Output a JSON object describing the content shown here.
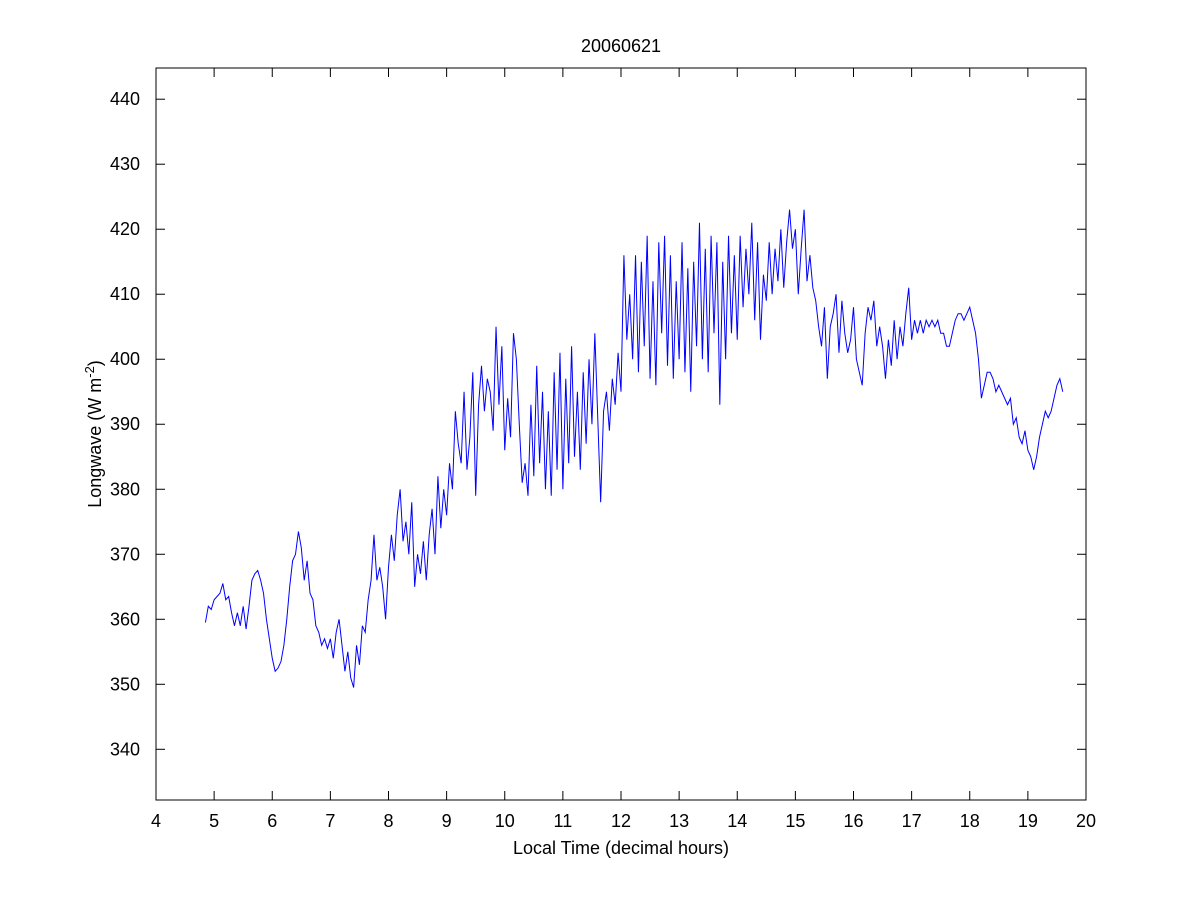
{
  "chart_data": {
    "type": "line",
    "title": "20060621",
    "x_label": "Local Time (decimal hours)",
    "y_label": {
      "text": "Longwave (W m",
      "superscript": "-2",
      "suffix": ")"
    },
    "color": "#0000ff",
    "xlim": [
      4,
      20
    ],
    "xticks": [
      4,
      5,
      6,
      7,
      8,
      9,
      10,
      11,
      12,
      13,
      14,
      15,
      16,
      17,
      18,
      19,
      20
    ],
    "ylim": [
      332.2,
      444.8
    ],
    "yticks": [
      340,
      350,
      360,
      370,
      380,
      390,
      400,
      410,
      420,
      430,
      440
    ],
    "x": [
      4.85,
      4.9,
      4.95,
      5.0,
      5.05,
      5.1,
      5.15,
      5.2,
      5.25,
      5.3,
      5.35,
      5.4,
      5.45,
      5.5,
      5.55,
      5.6,
      5.65,
      5.7,
      5.75,
      5.8,
      5.85,
      5.9,
      5.95,
      6.0,
      6.05,
      6.1,
      6.15,
      6.2,
      6.25,
      6.3,
      6.35,
      6.4,
      6.45,
      6.5,
      6.55,
      6.6,
      6.65,
      6.7,
      6.75,
      6.8,
      6.85,
      6.9,
      6.95,
      7.0,
      7.05,
      7.1,
      7.15,
      7.2,
      7.25,
      7.3,
      7.35,
      7.4,
      7.45,
      7.5,
      7.55,
      7.6,
      7.65,
      7.7,
      7.75,
      7.8,
      7.85,
      7.9,
      7.95,
      8.0,
      8.05,
      8.1,
      8.15,
      8.2,
      8.25,
      8.3,
      8.35,
      8.4,
      8.45,
      8.5,
      8.55,
      8.6,
      8.65,
      8.7,
      8.75,
      8.8,
      8.85,
      8.9,
      8.95,
      9.0,
      9.05,
      9.1,
      9.15,
      9.2,
      9.25,
      9.3,
      9.35,
      9.4,
      9.45,
      9.5,
      9.55,
      9.6,
      9.65,
      9.7,
      9.75,
      9.8,
      9.85,
      9.9,
      9.95,
      10.0,
      10.05,
      10.1,
      10.15,
      10.2,
      10.25,
      10.3,
      10.35,
      10.4,
      10.45,
      10.5,
      10.55,
      10.6,
      10.65,
      10.7,
      10.75,
      10.8,
      10.85,
      10.9,
      10.95,
      11.0,
      11.05,
      11.1,
      11.15,
      11.2,
      11.25,
      11.3,
      11.35,
      11.4,
      11.45,
      11.5,
      11.55,
      11.6,
      11.65,
      11.7,
      11.75,
      11.8,
      11.85,
      11.9,
      11.95,
      12.0,
      12.05,
      12.1,
      12.15,
      12.2,
      12.25,
      12.3,
      12.35,
      12.4,
      12.45,
      12.5,
      12.55,
      12.6,
      12.65,
      12.7,
      12.75,
      12.8,
      12.85,
      12.9,
      12.95,
      13.0,
      13.05,
      13.1,
      13.15,
      13.2,
      13.25,
      13.3,
      13.35,
      13.4,
      13.45,
      13.5,
      13.55,
      13.6,
      13.65,
      13.7,
      13.75,
      13.8,
      13.85,
      13.9,
      13.95,
      14.0,
      14.05,
      14.1,
      14.15,
      14.2,
      14.25,
      14.3,
      14.35,
      14.4,
      14.45,
      14.5,
      14.55,
      14.6,
      14.65,
      14.7,
      14.75,
      14.8,
      14.85,
      14.9,
      14.95,
      15.0,
      15.05,
      15.1,
      15.15,
      15.2,
      15.25,
      15.3,
      15.35,
      15.4,
      15.45,
      15.5,
      15.55,
      15.6,
      15.65,
      15.7,
      15.75,
      15.8,
      15.85,
      15.9,
      15.95,
      16.0,
      16.05,
      16.1,
      16.15,
      16.2,
      16.25,
      16.3,
      16.35,
      16.4,
      16.45,
      16.5,
      16.55,
      16.6,
      16.65,
      16.7,
      16.75,
      16.8,
      16.85,
      16.9,
      16.95,
      17.0,
      17.05,
      17.1,
      17.15,
      17.2,
      17.25,
      17.3,
      17.35,
      17.4,
      17.45,
      17.5,
      17.55,
      17.6,
      17.65,
      17.7,
      17.75,
      17.8,
      17.85,
      17.9,
      17.95,
      18.0,
      18.05,
      18.1,
      18.15,
      18.2,
      18.25,
      18.3,
      18.35,
      18.4,
      18.45,
      18.5,
      18.55,
      18.6,
      18.65,
      18.7,
      18.75,
      18.8,
      18.85,
      18.9,
      18.95,
      19.0,
      19.05,
      19.1,
      19.15,
      19.2,
      19.25,
      19.3,
      19.35,
      19.4,
      19.45,
      19.5,
      19.55,
      19.6
    ],
    "values": [
      359.5,
      362,
      361.5,
      363,
      363.5,
      364,
      365.5,
      363,
      363.5,
      361,
      359,
      361,
      359,
      362,
      358.5,
      362,
      366,
      367,
      367.5,
      366,
      364,
      360,
      357,
      354,
      352,
      352.5,
      353.5,
      356,
      360,
      365,
      369,
      370,
      373.5,
      371,
      366,
      369,
      364,
      363,
      359,
      358,
      356,
      357,
      355.5,
      357,
      354,
      358,
      360,
      356,
      352,
      355,
      351,
      349.5,
      356,
      353,
      359,
      358,
      363,
      366,
      373,
      366,
      368,
      365,
      360,
      368,
      373,
      369,
      376,
      380,
      372,
      375,
      370,
      378,
      365,
      370,
      367,
      372,
      366,
      373,
      377,
      370,
      382,
      374,
      380,
      376,
      384,
      380,
      392,
      387,
      384,
      395,
      383,
      388,
      398,
      379,
      393,
      399,
      392,
      397,
      395,
      389,
      405,
      393,
      402,
      386,
      394,
      388,
      404,
      400,
      390,
      381,
      384,
      379,
      393,
      382,
      399,
      384,
      395,
      380,
      392,
      379,
      398,
      383,
      401,
      380,
      397,
      384,
      402,
      385,
      395,
      383,
      398,
      387,
      400,
      390,
      404,
      391,
      378,
      392,
      395,
      389,
      397,
      393,
      401,
      395,
      416,
      403,
      410,
      400,
      416,
      398,
      415,
      402,
      419,
      397,
      412,
      396,
      418,
      404,
      419,
      399,
      416,
      397,
      412,
      400,
      418,
      398,
      414,
      395,
      415,
      402,
      421,
      400,
      417,
      398,
      419,
      404,
      418,
      393,
      415,
      400,
      419,
      404,
      416,
      403,
      419,
      408,
      417,
      410,
      421,
      406,
      418,
      403,
      413,
      409,
      418,
      410,
      417,
      412,
      420,
      411,
      418,
      423,
      417,
      420,
      410,
      417,
      423,
      412,
      416,
      411,
      409,
      405,
      402,
      408,
      397,
      405,
      407,
      410,
      401,
      409,
      404,
      401,
      403,
      408,
      400,
      398,
      396,
      404,
      408,
      406,
      409,
      402,
      405,
      402,
      397,
      403,
      399,
      406,
      400,
      405,
      402,
      407,
      411,
      403,
      406,
      404,
      406,
      404,
      406,
      405,
      406,
      405,
      406,
      404,
      404,
      402,
      402,
      404,
      406,
      407,
      407,
      406,
      407,
      408,
      406,
      404,
      400,
      394,
      396,
      398,
      398,
      397,
      395,
      396,
      395,
      394,
      393,
      394,
      390,
      391,
      388,
      387,
      389,
      386,
      385,
      383,
      385,
      388,
      390,
      392,
      391,
      392,
      394,
      396,
      397,
      395
    ]
  }
}
